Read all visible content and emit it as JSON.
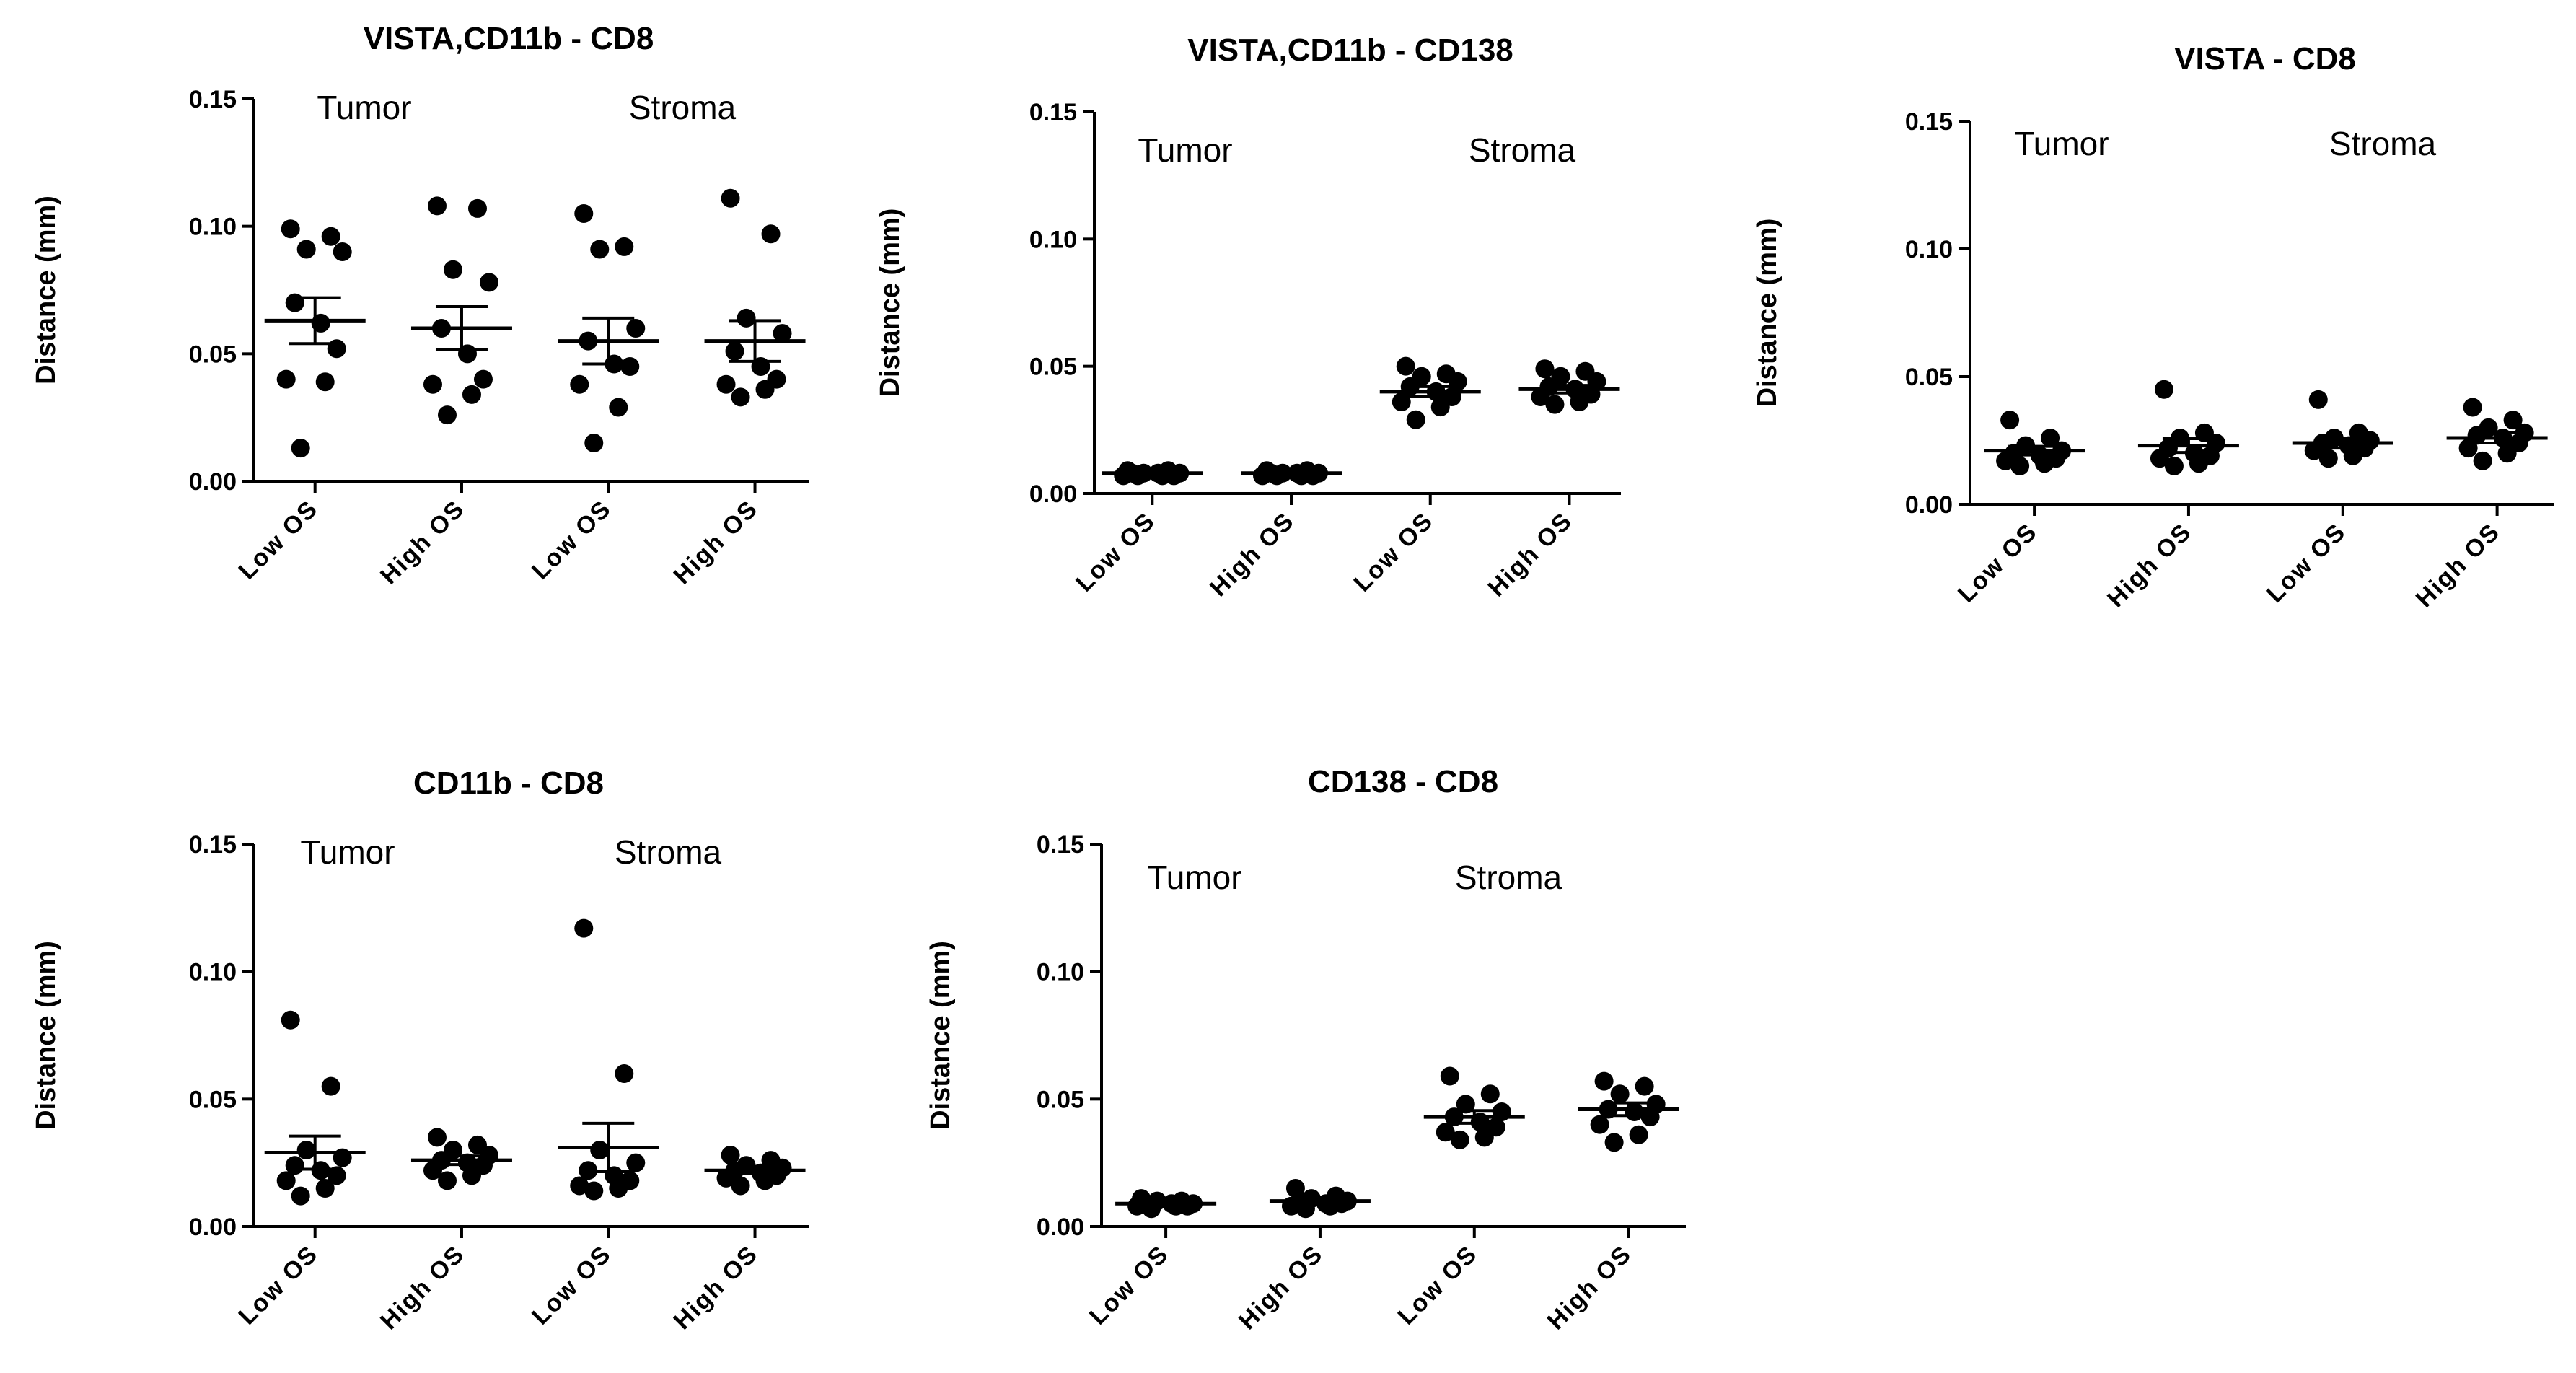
{
  "chart_data": [
    {
      "type": "scatter",
      "title": "VISTA,CD11b - CD8",
      "ylabel": "Distance (mm)",
      "ylim": [
        0,
        0.15
      ],
      "yticks": [
        "0.00",
        "0.05",
        "0.10",
        "0.15"
      ],
      "groups": [
        "Tumor",
        "Stroma"
      ],
      "categories": [
        "Low OS",
        "High OS",
        "Low OS",
        "High OS"
      ],
      "series": [
        {
          "name": "Tumor Low OS",
          "values": [
            0.099,
            0.096,
            0.091,
            0.09,
            0.07,
            0.062,
            0.052,
            0.04,
            0.039,
            0.013
          ],
          "mean": 0.063,
          "sem": 0.009
        },
        {
          "name": "Tumor High OS",
          "values": [
            0.108,
            0.107,
            0.083,
            0.078,
            0.06,
            0.05,
            0.04,
            0.038,
            0.034,
            0.026
          ],
          "mean": 0.06,
          "sem": 0.0085
        },
        {
          "name": "Stroma Low OS",
          "values": [
            0.105,
            0.092,
            0.091,
            0.06,
            0.055,
            0.046,
            0.045,
            0.038,
            0.029,
            0.015
          ],
          "mean": 0.055,
          "sem": 0.009
        },
        {
          "name": "Stroma High OS",
          "values": [
            0.111,
            0.097,
            0.064,
            0.058,
            0.051,
            0.045,
            0.04,
            0.038,
            0.036,
            0.033
          ],
          "mean": 0.055,
          "sem": 0.008
        }
      ]
    },
    {
      "type": "scatter",
      "title": "VISTA,CD11b - CD138",
      "ylabel": "Distance (mm)",
      "ylim": [
        0,
        0.15
      ],
      "yticks": [
        "0.00",
        "0.05",
        "0.10",
        "0.15"
      ],
      "groups": [
        "Tumor",
        "Stroma"
      ],
      "categories": [
        "Low OS",
        "High OS",
        "Low OS",
        "High OS"
      ],
      "series": [
        {
          "name": "Tumor Low OS",
          "values": [
            0.009,
            0.009,
            0.008,
            0.008,
            0.008,
            0.008,
            0.007,
            0.007,
            0.007,
            0.007
          ],
          "mean": 0.008,
          "sem": 0.0003
        },
        {
          "name": "Tumor High OS",
          "values": [
            0.009,
            0.009,
            0.008,
            0.008,
            0.008,
            0.008,
            0.007,
            0.007,
            0.007,
            0.007
          ],
          "mean": 0.008,
          "sem": 0.0003
        },
        {
          "name": "Stroma Low OS",
          "values": [
            0.05,
            0.047,
            0.046,
            0.044,
            0.042,
            0.04,
            0.038,
            0.036,
            0.034,
            0.029
          ],
          "mean": 0.04,
          "sem": 0.002
        },
        {
          "name": "Stroma High OS",
          "values": [
            0.049,
            0.048,
            0.046,
            0.044,
            0.042,
            0.041,
            0.039,
            0.038,
            0.036,
            0.035
          ],
          "mean": 0.041,
          "sem": 0.0015
        }
      ]
    },
    {
      "type": "scatter",
      "title": "VISTA - CD8",
      "ylabel": "Distance (mm)",
      "ylim": [
        0,
        0.15
      ],
      "yticks": [
        "0.00",
        "0.05",
        "0.10",
        "0.15"
      ],
      "groups": [
        "Tumor",
        "Stroma"
      ],
      "categories": [
        "Low OS",
        "High OS",
        "Low OS",
        "High OS"
      ],
      "series": [
        {
          "name": "Tumor Low OS",
          "values": [
            0.033,
            0.026,
            0.023,
            0.021,
            0.02,
            0.019,
            0.018,
            0.017,
            0.016,
            0.015
          ],
          "mean": 0.021,
          "sem": 0.0017
        },
        {
          "name": "Tumor High OS",
          "values": [
            0.045,
            0.028,
            0.026,
            0.024,
            0.022,
            0.02,
            0.019,
            0.018,
            0.016,
            0.015
          ],
          "mean": 0.023,
          "sem": 0.0027
        },
        {
          "name": "Stroma Low OS",
          "values": [
            0.041,
            0.028,
            0.026,
            0.025,
            0.024,
            0.023,
            0.022,
            0.021,
            0.019,
            0.018
          ],
          "mean": 0.024,
          "sem": 0.002
        },
        {
          "name": "Stroma High OS",
          "values": [
            0.038,
            0.033,
            0.03,
            0.028,
            0.027,
            0.026,
            0.024,
            0.022,
            0.02,
            0.017
          ],
          "mean": 0.026,
          "sem": 0.002
        }
      ]
    },
    {
      "type": "scatter",
      "title": "CD11b - CD8",
      "ylabel": "Distance (mm)",
      "ylim": [
        0,
        0.15
      ],
      "yticks": [
        "0.00",
        "0.05",
        "0.10",
        "0.15"
      ],
      "groups": [
        "Tumor",
        "Stroma"
      ],
      "categories": [
        "Low OS",
        "High OS",
        "Low OS",
        "High OS"
      ],
      "series": [
        {
          "name": "Tumor Low OS",
          "values": [
            0.081,
            0.055,
            0.03,
            0.027,
            0.024,
            0.022,
            0.02,
            0.018,
            0.015,
            0.012
          ],
          "mean": 0.029,
          "sem": 0.0065
        },
        {
          "name": "Tumor High OS",
          "values": [
            0.035,
            0.032,
            0.03,
            0.028,
            0.026,
            0.025,
            0.024,
            0.022,
            0.02,
            0.018
          ],
          "mean": 0.026,
          "sem": 0.0017
        },
        {
          "name": "Stroma Low OS",
          "values": [
            0.117,
            0.06,
            0.03,
            0.025,
            0.022,
            0.02,
            0.018,
            0.016,
            0.015,
            0.014
          ],
          "mean": 0.031,
          "sem": 0.0095
        },
        {
          "name": "Stroma High OS",
          "values": [
            0.028,
            0.026,
            0.024,
            0.023,
            0.022,
            0.021,
            0.02,
            0.019,
            0.018,
            0.016
          ],
          "mean": 0.022,
          "sem": 0.0012
        }
      ]
    },
    {
      "type": "scatter",
      "title": "CD138 - CD8",
      "ylabel": "Distance (mm)",
      "ylim": [
        0,
        0.15
      ],
      "yticks": [
        "0.00",
        "0.05",
        "0.10",
        "0.15"
      ],
      "groups": [
        "Tumor",
        "Stroma"
      ],
      "categories": [
        "Low OS",
        "High OS",
        "Low OS",
        "High OS"
      ],
      "series": [
        {
          "name": "Tumor Low OS",
          "values": [
            0.011,
            0.01,
            0.01,
            0.009,
            0.009,
            0.009,
            0.008,
            0.008,
            0.008,
            0.007
          ],
          "mean": 0.009,
          "sem": 0.0004
        },
        {
          "name": "Tumor High OS",
          "values": [
            0.015,
            0.012,
            0.011,
            0.01,
            0.01,
            0.009,
            0.009,
            0.008,
            0.008,
            0.007
          ],
          "mean": 0.01,
          "sem": 0.0007
        },
        {
          "name": "Stroma Low OS",
          "values": [
            0.059,
            0.052,
            0.048,
            0.045,
            0.043,
            0.041,
            0.039,
            0.037,
            0.035,
            0.034
          ],
          "mean": 0.043,
          "sem": 0.0025
        },
        {
          "name": "Stroma High OS",
          "values": [
            0.057,
            0.055,
            0.052,
            0.048,
            0.046,
            0.045,
            0.043,
            0.04,
            0.036,
            0.033
          ],
          "mean": 0.046,
          "sem": 0.0025
        }
      ]
    }
  ]
}
